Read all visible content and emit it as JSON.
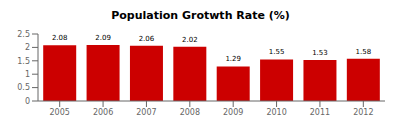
{
  "chart_data": {
    "type": "bar",
    "title": "Population Grotwth Rate (%)",
    "categories": [
      "2005",
      "2006",
      "2007",
      "2008",
      "2009",
      "2010",
      "2011",
      "2012"
    ],
    "values": [
      2.08,
      2.09,
      2.06,
      2.02,
      1.29,
      1.55,
      1.53,
      1.58
    ],
    "color": "#cc0000",
    "ylim": [
      0,
      2.5
    ],
    "yticks": [
      0,
      0.5,
      1,
      1.5,
      2,
      2.5
    ],
    "grid": false,
    "data_labels": true
  }
}
